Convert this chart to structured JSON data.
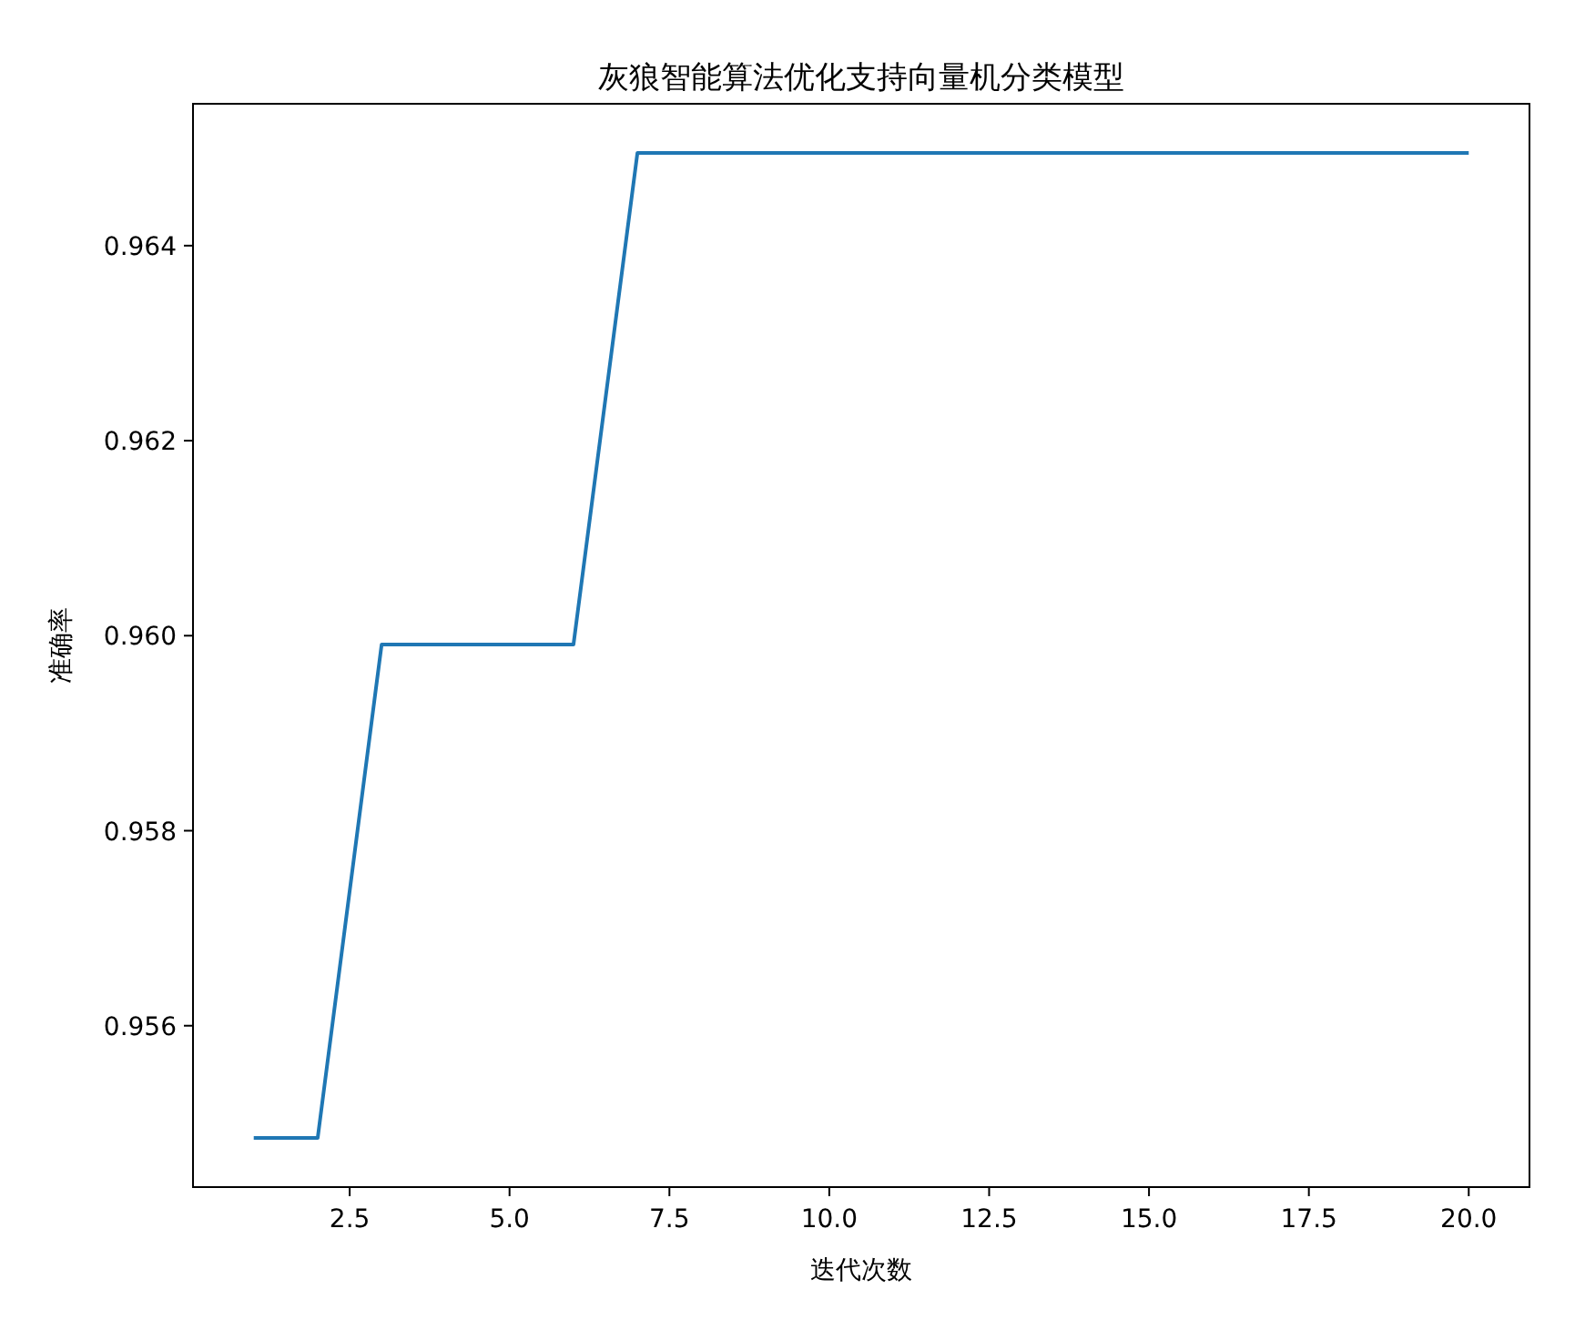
{
  "chart_data": {
    "type": "line",
    "title": "灰狼智能算法优化支持向量机分类模型",
    "xlabel": "迭代次数",
    "ylabel": "准确率",
    "x": [
      1,
      2,
      3,
      4,
      5,
      6,
      7,
      8,
      9,
      10,
      11,
      12,
      13,
      14,
      15,
      16,
      17,
      18,
      19,
      20
    ],
    "values": [
      0.95485,
      0.95485,
      0.95991,
      0.95991,
      0.95991,
      0.95991,
      0.96495,
      0.96495,
      0.96495,
      0.96495,
      0.96495,
      0.96495,
      0.96495,
      0.96495,
      0.96495,
      0.96495,
      0.96495,
      0.96495,
      0.96495,
      0.96495
    ],
    "color": "#1f77b4",
    "xlim": [
      0.05,
      20.95
    ],
    "ylim": [
      0.954345,
      0.965455
    ],
    "xticks": [
      2.5,
      {
        "value": 5,
        "label": "5.0"
      },
      7.5,
      {
        "value": 10,
        "label": "10.0"
      },
      12.5,
      {
        "value": 15,
        "label": "15.0"
      },
      17.5,
      {
        "value": 20,
        "label": "20.0"
      }
    ],
    "yticks": [
      0.956,
      0.958,
      {
        "value": 0.96,
        "label": "0.960"
      },
      0.962,
      0.964
    ]
  }
}
